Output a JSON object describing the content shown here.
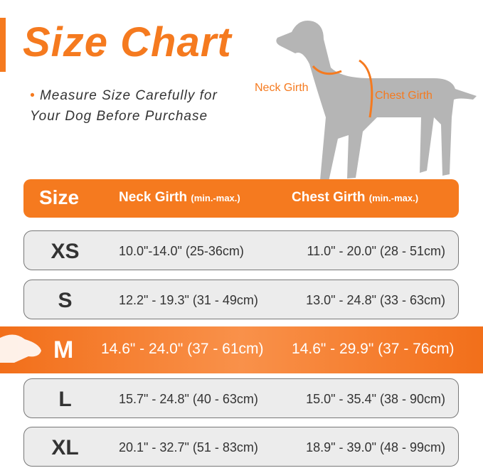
{
  "title": "Size Chart",
  "note": {
    "bullet": "•",
    "text": "Measure Size Carefully for Your Dog Before Purchase"
  },
  "diagram": {
    "neck_label": "Neck Girth",
    "chest_label": "Chest Girth"
  },
  "table": {
    "headers": {
      "size": "Size",
      "neck": "Neck Girth",
      "neck_sub": "(min.-max.)",
      "chest": "Chest Girth",
      "chest_sub": "(min.-max.)"
    },
    "rows": [
      {
        "size": "XS",
        "neck": "10.0\"-14.0\" (25-36cm)",
        "chest": "11.0\" - 20.0\" (28 - 51cm)"
      },
      {
        "size": "S",
        "neck": "12.2\" - 19.3\" (31 - 49cm)",
        "chest": "13.0\" - 24.8\" (33 - 63cm)"
      },
      {
        "size": "M",
        "neck": "14.6\" - 24.0\" (37 - 61cm)",
        "chest": "14.6\" - 29.9\" (37 - 76cm)",
        "highlighted": true
      },
      {
        "size": "L",
        "neck": "15.7\" - 24.8\" (40 - 63cm)",
        "chest": "15.0\" - 35.4\" (38 - 90cm)"
      },
      {
        "size": "XL",
        "neck": "20.1\" - 32.7\" (51 - 83cm)",
        "chest": "18.9\" - 39.0\" (48 - 99cm)"
      }
    ]
  },
  "colors": {
    "accent": "#f57a1f",
    "row_bg": "#ececec"
  }
}
